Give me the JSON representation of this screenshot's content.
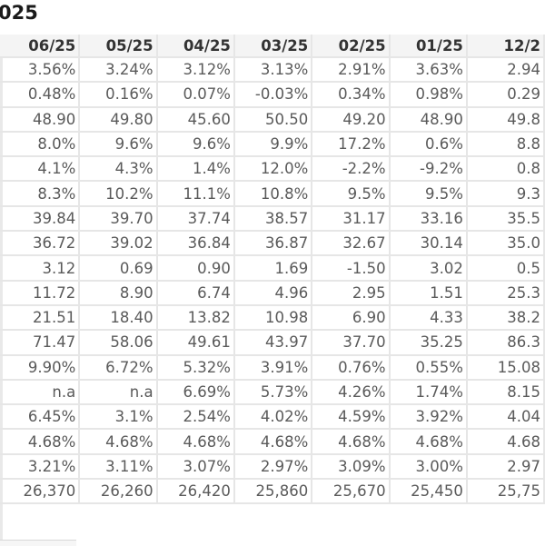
{
  "title": "025",
  "table": {
    "headers": [
      "06/25",
      "05/25",
      "04/25",
      "03/25",
      "02/25",
      "01/25",
      "12/2"
    ],
    "rows": [
      [
        "3.56%",
        "3.24%",
        "3.12%",
        "3.13%",
        "2.91%",
        "3.63%",
        "2.94"
      ],
      [
        "0.48%",
        "0.16%",
        "0.07%",
        "-0.03%",
        "0.34%",
        "0.98%",
        "0.29"
      ],
      [
        "48.90",
        "49.80",
        "45.60",
        "50.50",
        "49.20",
        "48.90",
        "49.8"
      ],
      [
        "8.0%",
        "9.6%",
        "9.6%",
        "9.9%",
        "17.2%",
        "0.6%",
        "8.8"
      ],
      [
        "4.1%",
        "4.3%",
        "1.4%",
        "12.0%",
        "-2.2%",
        "-9.2%",
        "0.8"
      ],
      [
        "8.3%",
        "10.2%",
        "11.1%",
        "10.8%",
        "9.5%",
        "9.5%",
        "9.3"
      ],
      [
        "39.84",
        "39.70",
        "37.74",
        "38.57",
        "31.17",
        "33.16",
        "35.5"
      ],
      [
        "36.72",
        "39.02",
        "36.84",
        "36.87",
        "32.67",
        "30.14",
        "35.0"
      ],
      [
        "3.12",
        "0.69",
        "0.90",
        "1.69",
        "-1.50",
        "3.02",
        "0.5"
      ],
      [
        "11.72",
        "8.90",
        "6.74",
        "4.96",
        "2.95",
        "1.51",
        "25.3"
      ],
      [
        "21.51",
        "18.40",
        "13.82",
        "10.98",
        "6.90",
        "4.33",
        "38.2"
      ],
      [
        "71.47",
        "58.06",
        "49.61",
        "43.97",
        "37.70",
        "35.25",
        "86.3"
      ],
      [
        "9.90%",
        "6.72%",
        "5.32%",
        "3.91%",
        "0.76%",
        "0.55%",
        "15.08"
      ],
      [
        "n.a",
        "n.a",
        "6.69%",
        "5.73%",
        "4.26%",
        "1.74%",
        "8.15"
      ],
      [
        "6.45%",
        "3.1%",
        "2.54%",
        "4.02%",
        "4.59%",
        "3.92%",
        "4.04"
      ],
      [
        "4.68%",
        "4.68%",
        "4.68%",
        "4.68%",
        "4.68%",
        "4.68%",
        "4.68"
      ],
      [
        "3.21%",
        "3.11%",
        "3.07%",
        "2.97%",
        "3.09%",
        "3.00%",
        "2.97"
      ],
      [
        "26,370",
        "26,260",
        "26,420",
        "25,860",
        "25,670",
        "25,450",
        "25,75"
      ]
    ]
  }
}
